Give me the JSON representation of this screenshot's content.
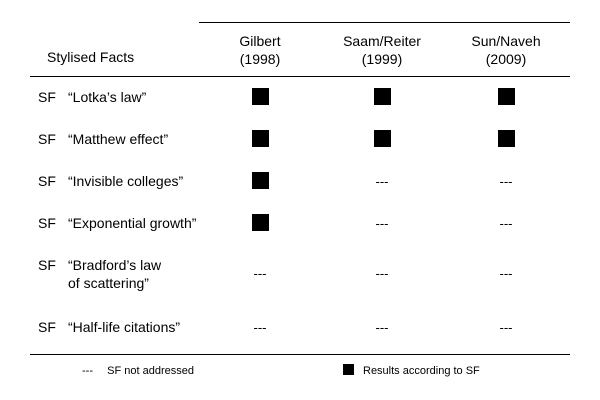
{
  "table": {
    "header_label": "Stylised Facts",
    "columns": [
      {
        "name": "Gilbert",
        "year": "(1998)"
      },
      {
        "name": "Saam/Reiter",
        "year": "(1999)"
      },
      {
        "name": "Sun/Naveh",
        "year": "(2009)"
      }
    ],
    "rows": [
      {
        "prefix": "SF",
        "fact": "“Lotka’s law”",
        "fact_line2": "",
        "cells": [
          "filled",
          "filled",
          "filled"
        ]
      },
      {
        "prefix": "SF",
        "fact": "“Matthew effect”",
        "fact_line2": "",
        "cells": [
          "filled",
          "filled",
          "filled"
        ]
      },
      {
        "prefix": "SF",
        "fact": "“Invisible colleges”",
        "fact_line2": "",
        "cells": [
          "filled",
          "---",
          "---"
        ]
      },
      {
        "prefix": "SF",
        "fact": "“Exponential growth”",
        "fact_line2": "",
        "cells": [
          "filled",
          "---",
          "---"
        ]
      },
      {
        "prefix": "SF",
        "fact": "“Bradford’s law",
        "fact_line2": "of scattering”",
        "cells": [
          "---",
          "---",
          "---"
        ]
      },
      {
        "prefix": "SF",
        "fact": "“Half-life citations”",
        "fact_line2": "",
        "cells": [
          "---",
          "---",
          "---"
        ]
      }
    ],
    "not_addressed_symbol": "---"
  },
  "legend": {
    "not_addressed_symbol": "---",
    "not_addressed_label": "SF not addressed",
    "results_label": "Results according to SF"
  }
}
